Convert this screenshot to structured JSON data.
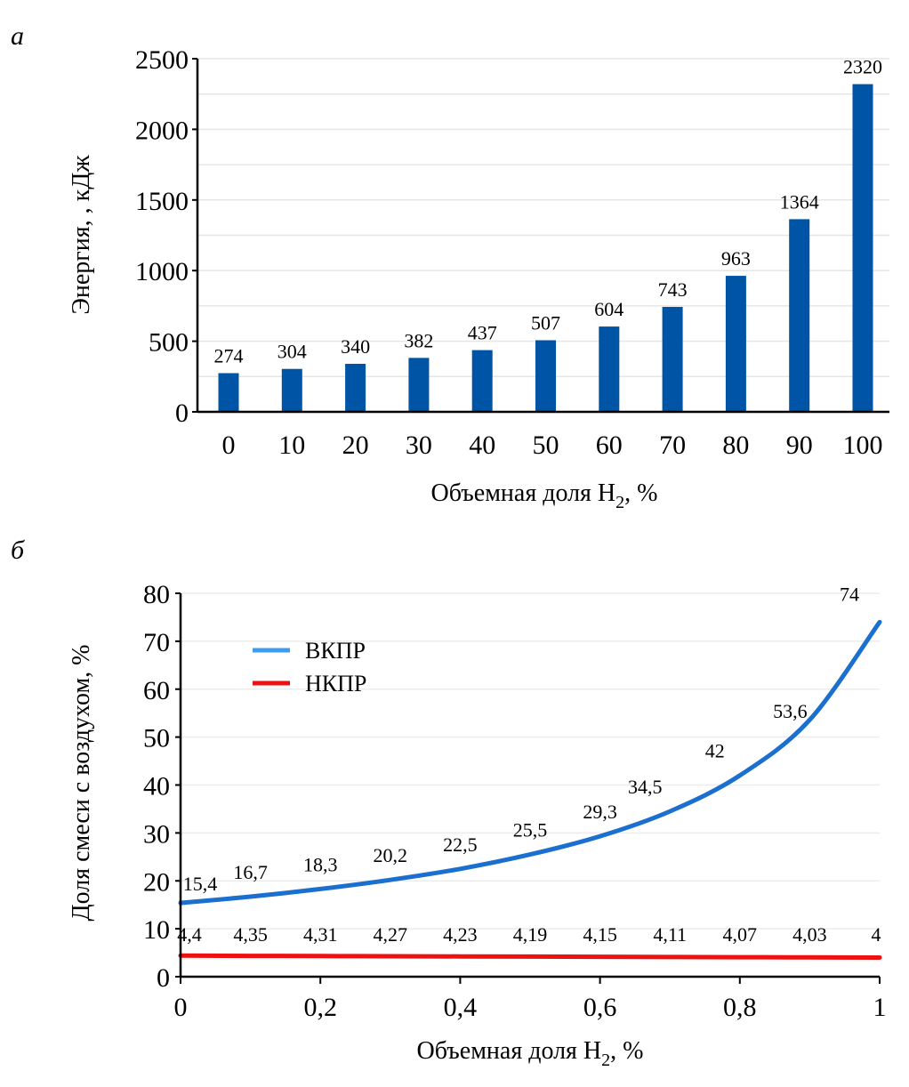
{
  "chart_data": [
    {
      "panel": "а",
      "type": "bar",
      "title": "",
      "xlabel": "Объемная доля H",
      "xlabel_sub": "2",
      "xlabel_suffix": ", %",
      "ylabel": "Энергия, , кДж",
      "categories": [
        "0",
        "10",
        "20",
        "30",
        "40",
        "50",
        "60",
        "70",
        "80",
        "90",
        "100"
      ],
      "values": [
        274,
        304,
        340,
        382,
        437,
        507,
        604,
        743,
        963,
        1364,
        2320
      ],
      "data_labels": [
        "274",
        "304",
        "340",
        "382",
        "437",
        "507",
        "604",
        "743",
        "963",
        "1364",
        "2320"
      ],
      "ylim": [
        0,
        2500
      ],
      "yticks": [
        0,
        500,
        1000,
        1500,
        2000,
        2500
      ],
      "ytick_labels": [
        "0",
        "500",
        "1000",
        "1500",
        "2000",
        "2500"
      ],
      "grid": true,
      "grid_step": 250,
      "bar_color": "#0054a6"
    },
    {
      "panel": "б",
      "type": "line",
      "title": "",
      "xlabel": "Объемная доля H",
      "xlabel_sub": "2",
      "xlabel_suffix": ", %",
      "ylabel": "Доля смеси с воздухом, %",
      "x": [
        0,
        0.1,
        0.2,
        0.3,
        0.4,
        0.5,
        0.6,
        0.7,
        0.8,
        0.9,
        1
      ],
      "xlim": [
        0,
        1
      ],
      "ylim": [
        0,
        80
      ],
      "xticks": [
        0,
        0.2,
        0.4,
        0.6,
        0.8,
        1
      ],
      "xtick_labels": [
        "0",
        "0,2",
        "0,4",
        "0,6",
        "0,8",
        "1"
      ],
      "yticks": [
        0,
        10,
        20,
        30,
        40,
        50,
        60,
        70,
        80
      ],
      "ytick_labels": [
        "0",
        "10",
        "20",
        "30",
        "40",
        "50",
        "60",
        "70",
        "80"
      ],
      "grid": true,
      "legend_position": "top-left",
      "series": [
        {
          "name": "ВКПР",
          "values": [
            15.4,
            16.7,
            18.3,
            20.2,
            22.5,
            25.5,
            29.3,
            34.5,
            42,
            53.6,
            74
          ],
          "data_labels": [
            "15,4",
            "16,7",
            "18,3",
            "20,2",
            "22,5",
            "25,5",
            "29,3",
            "34,5",
            "42",
            "53,6",
            "74"
          ],
          "color": "#1a6fcf",
          "legend_color": "#3d9bf0"
        },
        {
          "name": "НКПР",
          "values": [
            4.4,
            4.35,
            4.31,
            4.27,
            4.23,
            4.19,
            4.15,
            4.11,
            4.07,
            4.03,
            4
          ],
          "data_labels": [
            "4,4",
            "4,35",
            "4,31",
            "4,27",
            "4,23",
            "4,19",
            "4,15",
            "4,11",
            "4,07",
            "4,03",
            "4"
          ],
          "color": "#ee1111",
          "legend_color": "#ee1111"
        }
      ]
    }
  ]
}
